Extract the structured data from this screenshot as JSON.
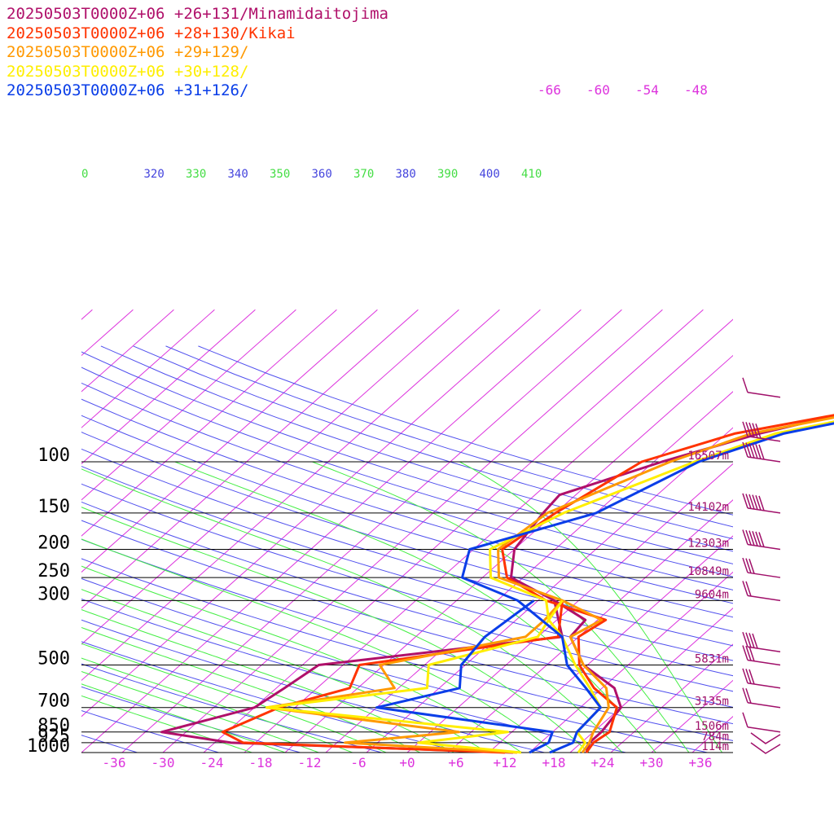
{
  "chart_data": {
    "type": "line",
    "title": "",
    "xlabel": "",
    "ylabel": "",
    "xlim": [
      -40,
      40
    ],
    "ylim": [
      1000,
      50
    ],
    "pressure_levels": [
      {
        "label": "100",
        "p": 100,
        "height": "16507m"
      },
      {
        "label": "150",
        "p": 150,
        "height": "14102m"
      },
      {
        "label": "200",
        "p": 200,
        "height": "12303m"
      },
      {
        "label": "250",
        "p": 250,
        "height": "10849m"
      },
      {
        "label": "300",
        "p": 300,
        "height": "9604m"
      },
      {
        "label": "500",
        "p": 500,
        "height": "5831m"
      },
      {
        "label": "700",
        "p": 700,
        "height": "3135m"
      },
      {
        "label": "850",
        "p": 850,
        "height": "1506m"
      },
      {
        "label": "925",
        "p": 925,
        "height": "784m"
      },
      {
        "label": "1000",
        "p": 1000,
        "height": "114m"
      }
    ],
    "x_ticks": [
      "-36",
      "-30",
      "-24",
      "-18",
      "-12",
      "-6",
      "+0",
      "+6",
      "+12",
      "+18",
      "+24",
      "+30",
      "+36"
    ],
    "upper_isotherm_labels": [
      "-66",
      "-60",
      "-54",
      "-48"
    ],
    "theta_labels": [
      {
        "text": "0",
        "color": "#44dd44"
      },
      {
        "text": "320",
        "color": "#4444dd"
      },
      {
        "text": "330",
        "color": "#44dd44"
      },
      {
        "text": "340",
        "color": "#4444dd"
      },
      {
        "text": "350",
        "color": "#44dd44"
      },
      {
        "text": "360",
        "color": "#4444dd"
      },
      {
        "text": "370",
        "color": "#44dd44"
      },
      {
        "text": "380",
        "color": "#4444dd"
      },
      {
        "text": "390",
        "color": "#44dd44"
      },
      {
        "text": "400",
        "color": "#4444dd"
      },
      {
        "text": "410",
        "color": "#44dd44"
      }
    ],
    "grid": true,
    "legend_position": "top-left",
    "colors": {
      "isotherm": "#dd33dd",
      "dry_adiabat": "#5050ee",
      "moist_adiabat": "#44ee44",
      "isobar": "#000000",
      "height_label": "#a0106a",
      "wind_barb": "#a0106a"
    },
    "series": [
      {
        "name": "20250503T0000Z+06 +26+131/Minamidaitojima",
        "color": "#b0106a",
        "temperature": [
          [
            1000,
            22
          ],
          [
            925,
            21
          ],
          [
            850,
            21
          ],
          [
            700,
            20
          ],
          [
            600,
            16.5
          ],
          [
            500,
            9.5
          ],
          [
            400,
            4
          ],
          [
            350,
            3.5
          ],
          [
            300,
            -3
          ],
          [
            250,
            -11.5
          ],
          [
            200,
            -15
          ],
          [
            150,
            -16.5
          ],
          [
            130,
            -17
          ],
          [
            100,
            -9
          ],
          [
            80,
            -1
          ],
          [
            60,
            13
          ]
        ],
        "dewpoint": [
          [
            1000,
            13
          ],
          [
            925,
            -23
          ],
          [
            850,
            -33
          ],
          [
            700,
            -25
          ],
          [
            600,
            -24
          ],
          [
            500,
            -23
          ],
          [
            400,
            3
          ],
          [
            300,
            -3
          ]
        ]
      },
      {
        "name": "20250503T0000Z+06 +28+130/Kikai",
        "color": "#ff3300",
        "temperature": [
          [
            1000,
            22
          ],
          [
            925,
            21.5
          ],
          [
            850,
            22
          ],
          [
            700,
            19.5
          ],
          [
            600,
            14
          ],
          [
            500,
            9
          ],
          [
            400,
            5
          ],
          [
            350,
            6
          ],
          [
            300,
            -4
          ],
          [
            250,
            -12
          ],
          [
            200,
            -16.5
          ],
          [
            150,
            -15
          ],
          [
            100,
            -11.5
          ],
          [
            80,
            -4
          ],
          [
            60,
            15
          ]
        ],
        "dewpoint": [
          [
            1000,
            12
          ],
          [
            925,
            -21.5
          ],
          [
            850,
            -25.5
          ],
          [
            700,
            -22
          ],
          [
            600,
            -16
          ],
          [
            500,
            -18
          ],
          [
            400,
            2.5
          ],
          [
            300,
            -2
          ]
        ]
      },
      {
        "name": "20250503T0000Z+06 +29+129/",
        "color": "#ff9900",
        "temperature": [
          [
            1000,
            21.5
          ],
          [
            925,
            21
          ],
          [
            850,
            20
          ],
          [
            700,
            18.5
          ],
          [
            600,
            15.5
          ],
          [
            500,
            9.5
          ],
          [
            400,
            4
          ],
          [
            350,
            5.5
          ],
          [
            300,
            -2
          ],
          [
            250,
            -13
          ],
          [
            200,
            -17
          ],
          [
            150,
            -16
          ],
          [
            100,
            -8
          ],
          [
            80,
            -2
          ],
          [
            60,
            16
          ]
        ],
        "dewpoint": [
          [
            1000,
            13.5
          ],
          [
            925,
            -9
          ],
          [
            850,
            3.5
          ],
          [
            700,
            -23.5
          ],
          [
            600,
            -10.5
          ],
          [
            500,
            -15.5
          ],
          [
            400,
            -1.5
          ],
          [
            350,
            -1.5
          ],
          [
            300,
            -2
          ]
        ]
      },
      {
        "name": "20250503T0000Z+06 +30+128/",
        "color": "#ffee00",
        "temperature": [
          [
            1000,
            21
          ],
          [
            925,
            20.5
          ],
          [
            850,
            18
          ],
          [
            700,
            17.5
          ],
          [
            600,
            13.5
          ],
          [
            500,
            8.5
          ],
          [
            400,
            3
          ],
          [
            350,
            -1
          ],
          [
            300,
            -4
          ],
          [
            250,
            -14
          ],
          [
            200,
            -18
          ],
          [
            150,
            -14
          ],
          [
            100,
            -5
          ],
          [
            80,
            1
          ],
          [
            60,
            18
          ]
        ],
        "dewpoint": [
          [
            1000,
            14
          ],
          [
            925,
            0
          ],
          [
            850,
            9.5
          ],
          [
            700,
            -23.5
          ],
          [
            600,
            -6.5
          ],
          [
            500,
            -9.5
          ],
          [
            400,
            0
          ],
          [
            350,
            -1
          ],
          [
            300,
            -2
          ]
        ]
      },
      {
        "name": "20250503T0000Z+06 +31+126/",
        "color": "#0a3ee8",
        "temperature": [
          [
            1000,
            17.5
          ],
          [
            925,
            19
          ],
          [
            850,
            18
          ],
          [
            700,
            17.5
          ],
          [
            600,
            13
          ],
          [
            500,
            7.5
          ],
          [
            400,
            3
          ],
          [
            300,
            -7.5
          ],
          [
            250,
            -17.5
          ],
          [
            200,
            -20.5
          ],
          [
            150,
            -10
          ],
          [
            100,
            -4.5
          ],
          [
            80,
            2
          ],
          [
            60,
            19
          ]
        ],
        "dewpoint": [
          [
            1000,
            15
          ],
          [
            925,
            16
          ],
          [
            850,
            15
          ],
          [
            700,
            -10
          ],
          [
            600,
            -2.5
          ],
          [
            500,
            -5.5
          ],
          [
            400,
            -6.5
          ],
          [
            300,
            -5.5
          ]
        ]
      }
    ],
    "wind_barbs": [
      {
        "p": 60,
        "kt": 10
      },
      {
        "p": 85,
        "kt": 45
      },
      {
        "p": 100,
        "kt": 55
      },
      {
        "p": 150,
        "kt": 60
      },
      {
        "p": 200,
        "kt": 55
      },
      {
        "p": 250,
        "kt": 25
      },
      {
        "p": 300,
        "kt": 15
      },
      {
        "p": 450,
        "kt": 40
      },
      {
        "p": 500,
        "kt": 30
      },
      {
        "p": 600,
        "kt": 25
      },
      {
        "p": 700,
        "kt": 20
      },
      {
        "p": 850,
        "kt": 5
      },
      {
        "p": 925,
        "kt": 0
      },
      {
        "p": 1000,
        "kt": 0
      }
    ]
  }
}
